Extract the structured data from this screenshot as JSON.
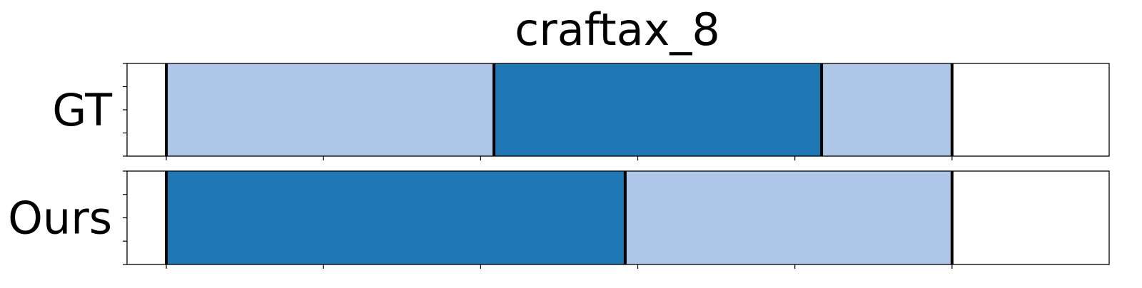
{
  "chart_data": {
    "type": "segmentation_timeline",
    "title": "craftax_8",
    "xlim": [
      -50,
      1200
    ],
    "x_ticks": [
      0,
      200,
      400,
      600,
      800,
      1000
    ],
    "tick_labels_visible": false,
    "rows": [
      {
        "label": "GT",
        "segments": [
          {
            "start": 0,
            "end": 417,
            "color": "#aec7e8"
          },
          {
            "start": 417,
            "end": 834,
            "color": "#1f77b4"
          },
          {
            "start": 834,
            "end": 1000,
            "color": "#aec7e8"
          }
        ],
        "boundaries": [
          0,
          417,
          834,
          1000
        ]
      },
      {
        "label": "Ours",
        "segments": [
          {
            "start": 0,
            "end": 584,
            "color": "#1f77b4"
          },
          {
            "start": 584,
            "end": 1000,
            "color": "#aec7e8"
          }
        ],
        "boundaries": [
          0,
          584,
          1000
        ]
      }
    ],
    "grid": false,
    "legend": "none"
  }
}
